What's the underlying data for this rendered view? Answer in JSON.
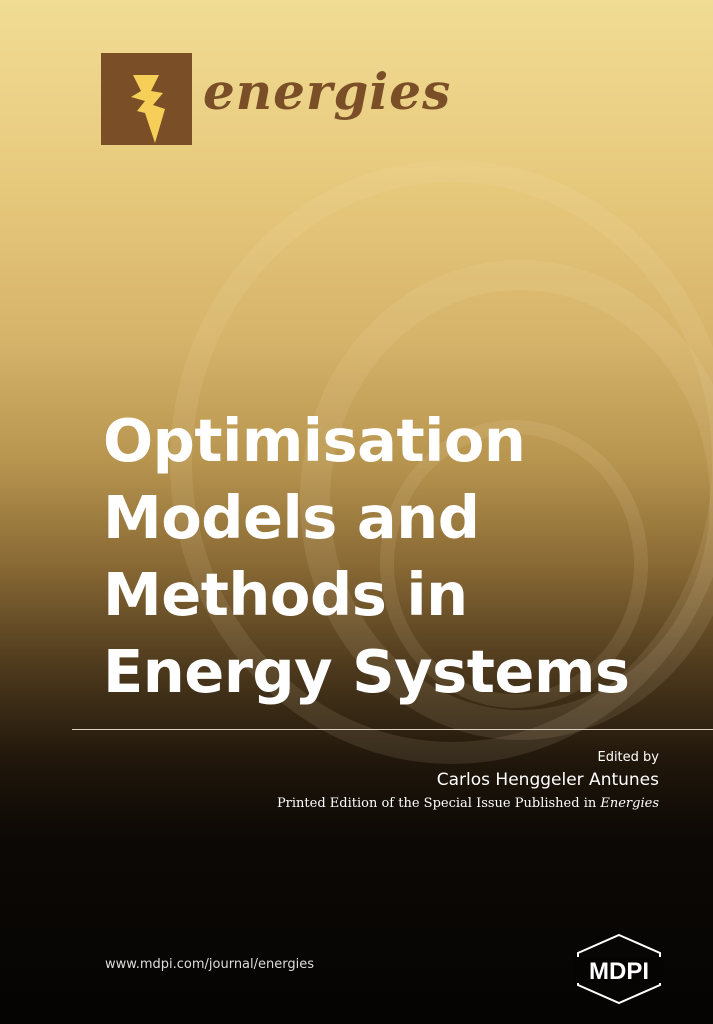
{
  "journal": {
    "name": "energies",
    "logo_icon": "lightning-bolt-icon",
    "brand_color": "#7a4f28",
    "bolt_color": "#f5cf58"
  },
  "title_lines": [
    "Optimisation",
    "Models and",
    "Methods in",
    "Energy Systems"
  ],
  "edited_by_label": "Edited by",
  "editor": "Carlos Henggeler Antunes",
  "printed_edition": {
    "text": "Printed Edition of the Special Issue Published in",
    "journal": "Energies"
  },
  "url": "www.mdpi.com/journal/energies",
  "publisher_logo": "MDPI"
}
